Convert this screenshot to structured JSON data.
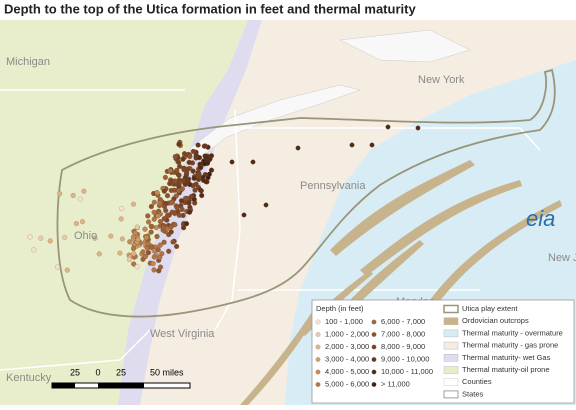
{
  "title": "Depth to the top of the Utica formation in feet and thermal maturity",
  "map_labels": [
    "Michigan",
    "New York",
    "Pennsylvania",
    "Ohio",
    "West Virginia",
    "Kentucky",
    "New Je",
    "Marylan"
  ],
  "legend": {
    "depth_title": "Depth (in feet)",
    "depth_items": [
      "100 - 1,000",
      "1,000 - 2,000",
      "2,000 - 3,000",
      "3,000 - 4,000",
      "4,000 - 5,000",
      "5,000 - 6,000",
      "6,000 - 7,000",
      "7,000 - 8,000",
      "8,000 - 9,000",
      "9,000 - 10,000",
      "10,000 - 11,000",
      "> 11,000"
    ],
    "layer_items": [
      "Utica play extent",
      "Ordovician outcrops",
      "Thermal maturity - overmature",
      "Thermal maturity - gas prone",
      "Thermal maturity- wet Gas",
      "Thermal maturity-oil prone",
      "Counties",
      "States"
    ]
  },
  "scale_labels": [
    "25",
    "0",
    "25",
    "50 miles"
  ],
  "logo": "eia"
}
